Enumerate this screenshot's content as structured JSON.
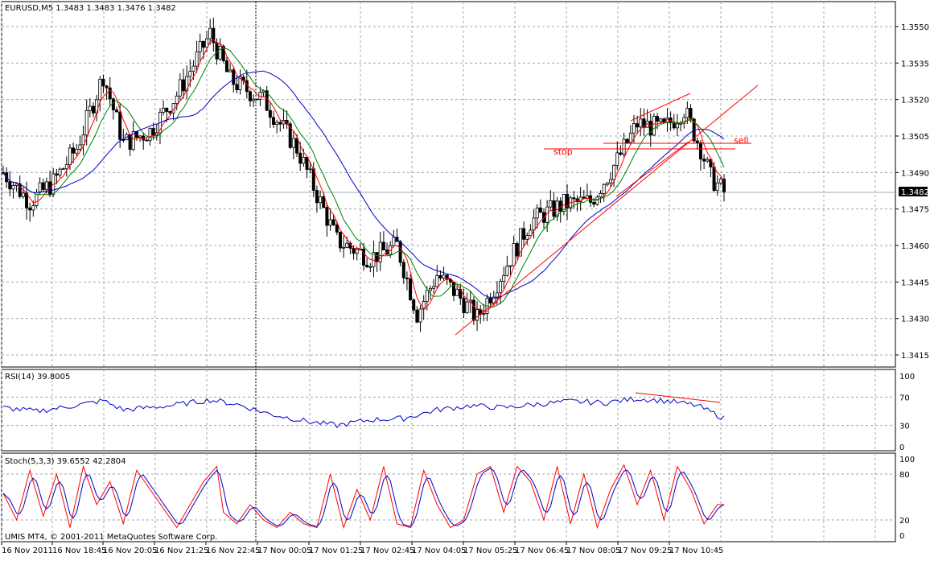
{
  "colors": {
    "background": "#ffffff",
    "grid": "#9fa9a9",
    "candle": "#000000",
    "bull_fill": "#ffffff",
    "bear_fill": "#000000",
    "ma_fast": "#ff0000",
    "ma_mid": "#008000",
    "ma_slow": "#0000cc",
    "annotation": "#ff0000",
    "rsi": "#0000cc",
    "stoch_main": "#ff0000",
    "stoch_signal": "#0000cc",
    "price_label_bg": "#000000",
    "price_label_fg": "#ffffff"
  },
  "main": {
    "header": "EURUSD,M5  1.3483 1.3483 1.3476 1.3482",
    "current_price": "1.3482",
    "annotations": {
      "stop": "stop",
      "sell": "sell"
    }
  },
  "rsi_panel": {
    "header": "RSI(14) 39.8005"
  },
  "stoch_panel": {
    "header": "Stoch(5,3,3) 39.6552 42.2804"
  },
  "copyright": "UMIS MT4, © 2001-2011 MetaQuotes Software Corp.",
  "chart_data": [
    {
      "type": "candlestick",
      "title": "EURUSD,M5",
      "ylim": [
        1.341,
        1.356
      ],
      "y_ticks": [
        "1.3550",
        "1.3535",
        "1.3520",
        "1.3505",
        "1.3490",
        "1.3475",
        "1.3460",
        "1.3445",
        "1.3430",
        "1.3415"
      ],
      "x_ticks": [
        "16 Nov 2011",
        "16 Nov 18:45",
        "16 Nov 20:05",
        "16 Nov 21:25",
        "16 Nov 22:45",
        "17 Nov 00:05",
        "17 Nov 01:25",
        "17 Nov 02:45",
        "17 Nov 04:05",
        "17 Nov 05:25",
        "17 Nov 06:45",
        "17 Nov 08:05",
        "17 Nov 09:25",
        "17 Nov 10:45"
      ],
      "series_points": [
        [
          0,
          1.349
        ],
        [
          8,
          1.3478
        ],
        [
          15,
          1.3486
        ],
        [
          22,
          1.35
        ],
        [
          30,
          1.353
        ],
        [
          36,
          1.3502
        ],
        [
          44,
          1.3507
        ],
        [
          52,
          1.3522
        ],
        [
          62,
          1.3547
        ],
        [
          68,
          1.3528
        ],
        [
          78,
          1.352
        ],
        [
          88,
          1.35
        ],
        [
          100,
          1.3462
        ],
        [
          110,
          1.3455
        ],
        [
          118,
          1.346
        ],
        [
          124,
          1.3432
        ],
        [
          130,
          1.3448
        ],
        [
          136,
          1.344
        ],
        [
          142,
          1.343
        ],
        [
          150,
          1.345
        ],
        [
          158,
          1.347
        ],
        [
          168,
          1.3477
        ],
        [
          176,
          1.3478
        ],
        [
          184,
          1.3495
        ],
        [
          190,
          1.351
        ],
        [
          198,
          1.3508
        ],
        [
          204,
          1.3516
        ],
        [
          209,
          1.35
        ],
        [
          212,
          1.3488
        ],
        [
          216,
          1.3482
        ]
      ],
      "indicators": [
        "Moving Average (fast)",
        "Moving Average (mid)",
        "Moving Average (slow)"
      ]
    },
    {
      "type": "line",
      "title": "RSI(14) 39.8005",
      "ylim": [
        0,
        100
      ],
      "y_ticks": [
        "100",
        "70",
        "30",
        "0"
      ],
      "series_points": [
        [
          0,
          55
        ],
        [
          10,
          50
        ],
        [
          20,
          57
        ],
        [
          30,
          65
        ],
        [
          36,
          52
        ],
        [
          50,
          58
        ],
        [
          62,
          66
        ],
        [
          70,
          60
        ],
        [
          80,
          46
        ],
        [
          92,
          35
        ],
        [
          100,
          30
        ],
        [
          110,
          38
        ],
        [
          120,
          40
        ],
        [
          130,
          52
        ],
        [
          140,
          58
        ],
        [
          150,
          55
        ],
        [
          160,
          60
        ],
        [
          170,
          64
        ],
        [
          180,
          62
        ],
        [
          190,
          68
        ],
        [
          200,
          64
        ],
        [
          208,
          58
        ],
        [
          216,
          40
        ]
      ]
    },
    {
      "type": "line",
      "title": "Stoch(5,3,3) 39.6552 42.2804",
      "ylim": [
        0,
        100
      ],
      "y_ticks": [
        "100",
        "80",
        "20",
        "0"
      ],
      "series": [
        {
          "values_main": [
            [
              0,
              55
            ],
            [
              4,
              20
            ],
            [
              8,
              85
            ],
            [
              12,
              25
            ],
            [
              16,
              80
            ],
            [
              20,
              10
            ],
            [
              24,
              90
            ],
            [
              28,
              40
            ],
            [
              32,
              70
            ],
            [
              36,
              15
            ],
            [
              40,
              85
            ],
            [
              44,
              60
            ],
            [
              48,
              35
            ],
            [
              52,
              10
            ],
            [
              56,
              40
            ],
            [
              60,
              70
            ],
            [
              64,
              90
            ],
            [
              66,
              30
            ],
            [
              70,
              15
            ],
            [
              74,
              40
            ],
            [
              78,
              20
            ],
            [
              82,
              10
            ],
            [
              86,
              30
            ],
            [
              90,
              15
            ],
            [
              94,
              10
            ],
            [
              98,
              80
            ],
            [
              102,
              10
            ],
            [
              106,
              60
            ],
            [
              110,
              20
            ],
            [
              114,
              90
            ],
            [
              118,
              15
            ],
            [
              122,
              10
            ],
            [
              126,
              85
            ],
            [
              130,
              40
            ],
            [
              134,
              10
            ],
            [
              138,
              20
            ],
            [
              142,
              80
            ],
            [
              146,
              90
            ],
            [
              150,
              30
            ],
            [
              154,
              90
            ],
            [
              158,
              70
            ],
            [
              162,
              20
            ],
            [
              166,
              90
            ],
            [
              170,
              15
            ],
            [
              174,
              80
            ],
            [
              178,
              10
            ],
            [
              182,
              60
            ],
            [
              186,
              92
            ],
            [
              190,
              40
            ],
            [
              194,
              85
            ],
            [
              198,
              20
            ],
            [
              202,
              90
            ],
            [
              206,
              60
            ],
            [
              210,
              15
            ],
            [
              214,
              40
            ]
          ]
        }
      ]
    }
  ]
}
